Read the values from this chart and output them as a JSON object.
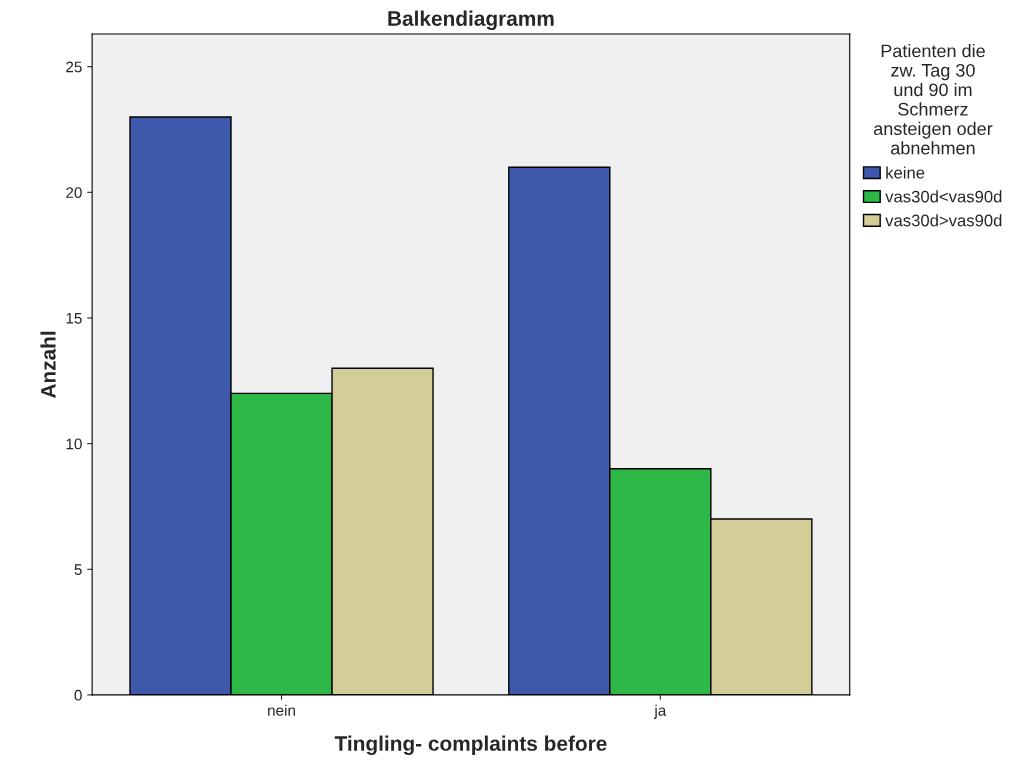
{
  "chart_data": {
    "type": "bar",
    "title": "Balkendiagramm",
    "xlabel": "Tingling- complaints before",
    "ylabel": "Anzahl",
    "legend_title": "Patienten die\nzw. Tag 30\nund 90 im\nSchmerz\nansteigen oder\nabnehmen",
    "categories": [
      "nein",
      "ja"
    ],
    "series": [
      {
        "name": "keine",
        "color": "#3e58ac",
        "values": [
          23,
          21
        ]
      },
      {
        "name": "vas30d<vas90d",
        "color": "#2eb848",
        "values": [
          12,
          9
        ]
      },
      {
        "name": "vas30d>vas90d",
        "color": "#d3ce97",
        "values": [
          13,
          7
        ]
      }
    ],
    "ylim": [
      0,
      26.3
    ],
    "yticks": [
      0,
      5,
      10,
      15,
      20,
      25
    ],
    "grid": false,
    "legend": "top right"
  }
}
